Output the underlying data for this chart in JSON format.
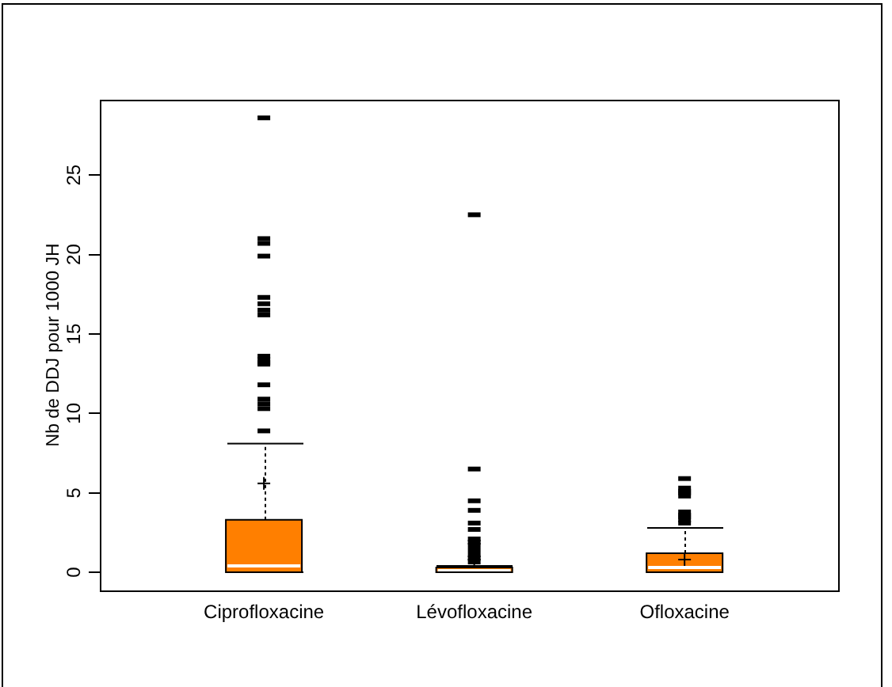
{
  "chart_data": {
    "type": "box",
    "categories": [
      "Ciprofloxacine",
      "Lévofloxacine",
      "Ofloxacine"
    ],
    "color": "#ff7f00",
    "ylabel": "Nb de DDJ pour 1000 JH",
    "ylim": [
      -1.14,
      29.74
    ],
    "yticks": [
      0,
      5,
      10,
      15,
      20,
      25
    ],
    "boxes": [
      {
        "low": 0,
        "q1": 0,
        "median": 0.4,
        "q3": 3.3,
        "high": 8.1,
        "mean": 5.6,
        "outliers": [
          8.9,
          10.3,
          10.6,
          10.9,
          11.8,
          13.1,
          13.2,
          13.4,
          13.6,
          16.2,
          16.5,
          16.9,
          17.3,
          19.9,
          20.7,
          21,
          28.6
        ]
      },
      {
        "low": 0,
        "q1": 0,
        "median": 0.1,
        "q3": 0.3,
        "high": 0.4,
        "mean": 0.8,
        "outliers": [
          0.65,
          0.9,
          1.1,
          1.4,
          1.7,
          1.9,
          2.1,
          2.7,
          3.1,
          3.9,
          4.5,
          6.5,
          22.5
        ]
      },
      {
        "low": 0,
        "q1": 0,
        "median": 0.3,
        "q3": 1.2,
        "high": 2.8,
        "mean": 0.8,
        "outliers": [
          3.1,
          3.3,
          3.5,
          3.6,
          3.8,
          4.8,
          5,
          5.1,
          5.3,
          5.9
        ]
      }
    ]
  }
}
